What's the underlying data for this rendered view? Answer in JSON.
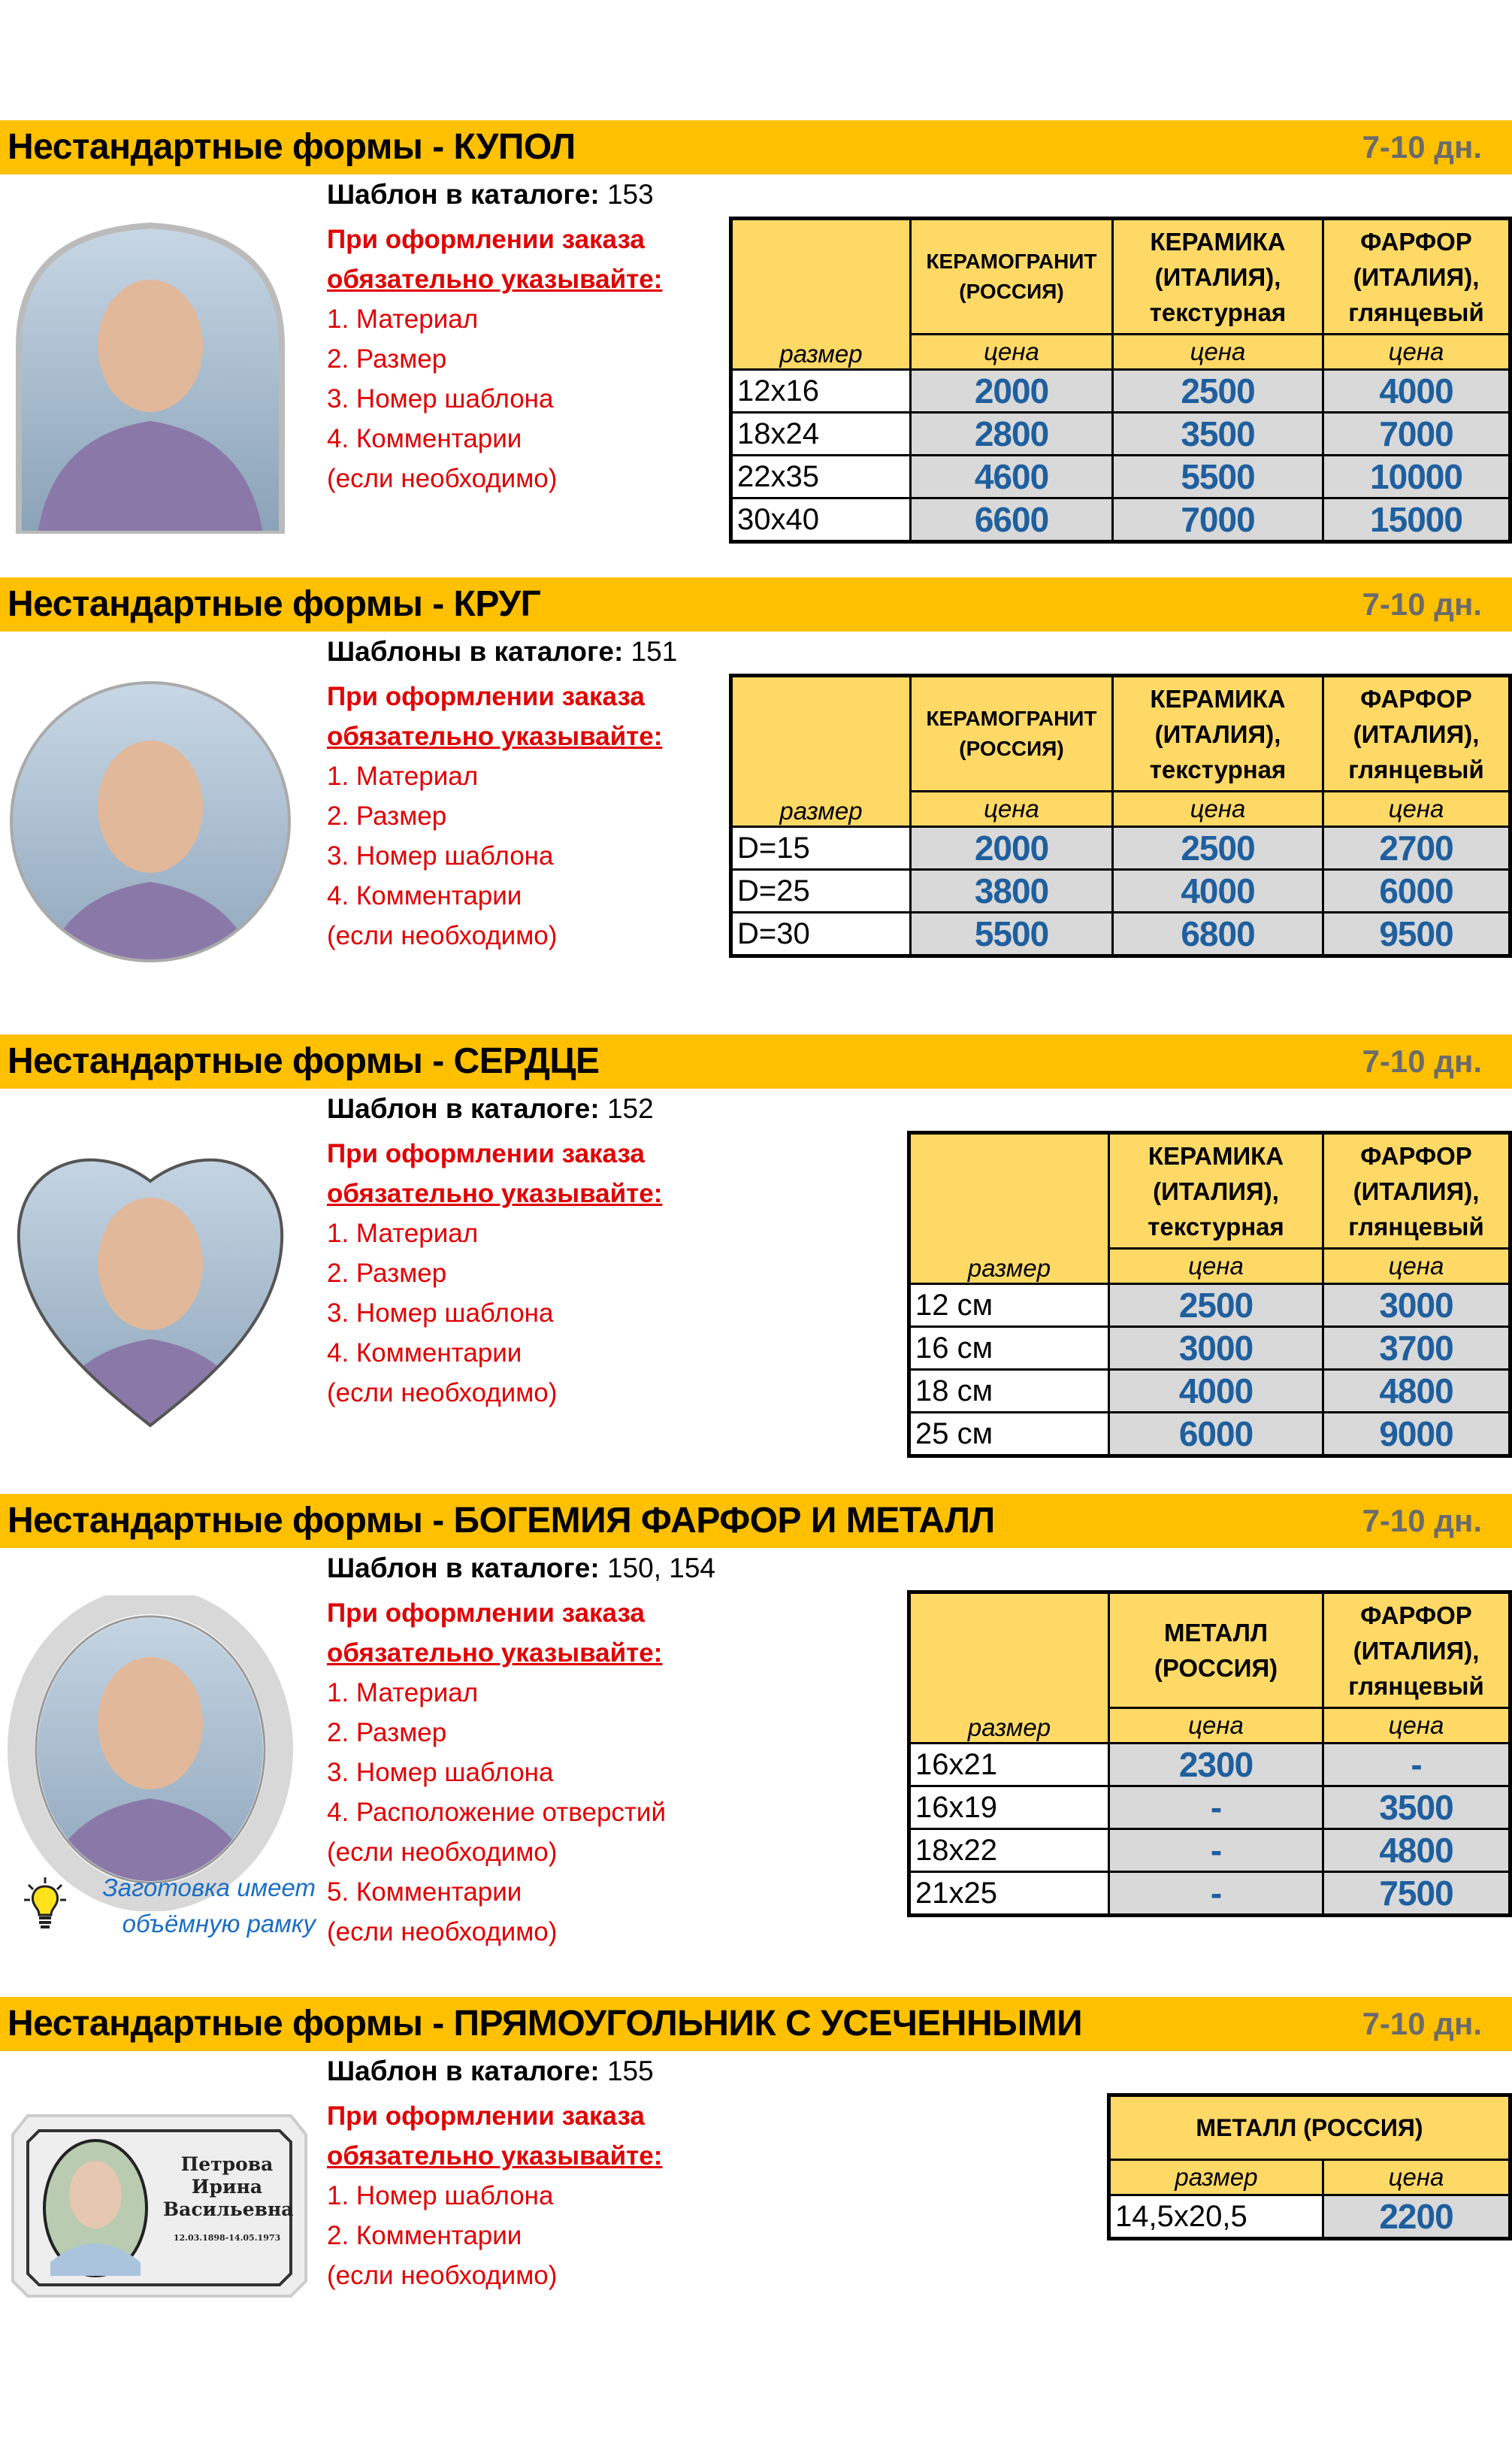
{
  "colors": {
    "bar": "#FFC000",
    "table_header": "#FFD966",
    "price_cell": "#D9D9D9",
    "price_text": "#1F5F9E",
    "required_text": "#E00000",
    "note_text": "#1A6EC6"
  },
  "common": {
    "size_label": "размер",
    "price_label": "цена",
    "days": "7-10 дн.",
    "order_heading": "При оформлении заказа",
    "order_heading2": "обязательно указывайте:"
  },
  "sections": [
    {
      "title": "Нестандартные формы - КУПОЛ",
      "catalog_label": "Шаблон в каталоге:",
      "catalog_value": " 153",
      "image": "dome-portrait",
      "requirements": [
        "1. Материал",
        "2. Размер",
        "3. Номер шаблона",
        "4. Комментарии",
        "(если необходимо)"
      ],
      "columns": [
        "КЕРАМОГРАНИТ\n(РОССИЯ)",
        "КЕРАМИКА\n(ИТАЛИЯ),\nтекстурная",
        "ФАРФОР\n(ИТАЛИЯ),\nглянцевый"
      ],
      "rows": [
        [
          "12x16",
          "2000",
          "2500",
          "4000"
        ],
        [
          "18x24",
          "2800",
          "3500",
          "7000"
        ],
        [
          "22x35",
          "4600",
          "5500",
          "10000"
        ],
        [
          "30x40",
          "6600",
          "7000",
          "15000"
        ]
      ]
    },
    {
      "title": "Нестандартные формы - КРУГ",
      "catalog_label": "Шаблоны в каталоге:",
      "catalog_value": " 151",
      "image": "circle-portrait",
      "requirements": [
        "1. Материал",
        "2. Размер",
        "3. Номер шаблона",
        "4. Комментарии",
        "(если необходимо)"
      ],
      "columns": [
        "КЕРАМОГРАНИТ\n(РОССИЯ)",
        "КЕРАМИКА\n(ИТАЛИЯ),\nтекстурная",
        "ФАРФОР\n(ИТАЛИЯ),\nглянцевый"
      ],
      "rows": [
        [
          "D=15",
          "2000",
          "2500",
          "2700"
        ],
        [
          "D=25",
          "3800",
          "4000",
          "6000"
        ],
        [
          "D=30",
          "5500",
          "6800",
          "9500"
        ]
      ]
    },
    {
      "title": "Нестандартные формы - СЕРДЦЕ",
      "catalog_label": "Шаблон в каталоге:",
      "catalog_value": " 152",
      "image": "heart-portrait",
      "requirements": [
        "1. Материал",
        "2. Размер",
        "3. Номер шаблона",
        "4. Комментарии",
        "(если необходимо)"
      ],
      "columns": [
        "КЕРАМИКА\n(ИТАЛИЯ),\nтекстурная",
        "ФАРФОР\n(ИТАЛИЯ),\nглянцевый"
      ],
      "rows": [
        [
          "12 см",
          "2500",
          "3000"
        ],
        [
          "16 см",
          "3000",
          "3700"
        ],
        [
          "18 см",
          "4000",
          "4800"
        ],
        [
          "25 см",
          "6000",
          "9000"
        ]
      ]
    },
    {
      "title": "Нестандартные формы - БОГЕМИЯ ФАРФОР И МЕТАЛЛ",
      "catalog_label": "Шаблон в каталоге:",
      "catalog_value": " 150, 154",
      "image": "oval-frame-portrait",
      "requirements": [
        "1. Материал",
        "2. Размер",
        "3. Номер шаблона",
        "4. Расположение отверстий",
        "(если необходимо)",
        "5. Комментарии",
        "(если необходимо)"
      ],
      "note": [
        "Заготовка имеет",
        "объёмную рамку"
      ],
      "note_icon": "lightbulb-icon",
      "columns": [
        "МЕТАЛЛ\n(РОССИЯ)",
        "ФАРФОР\n(ИТАЛИЯ),\nглянцевый"
      ],
      "rows": [
        [
          "16x21",
          "2300",
          "-"
        ],
        [
          "16x19",
          "-",
          "3500"
        ],
        [
          "18x22",
          "-",
          "4800"
        ],
        [
          "21x25",
          "-",
          "7500"
        ]
      ]
    },
    {
      "title": "Нестандартные формы - ПРЯМОУГОЛЬНИК С УСЕЧЕННЫМИ",
      "catalog_label": "Шаблон в каталоге:",
      "catalog_value": " 155",
      "image": "truncated-rectangle-plaque",
      "plaque_text": [
        "Петрова",
        "Ирина",
        "Васильевна",
        "12.03.1898-14.05.1973"
      ],
      "requirements": [
        "1. Номер шаблона",
        "2. Комментарии",
        "(если необходимо)"
      ],
      "columns": [
        "МЕТАЛЛ (РОССИЯ)"
      ],
      "rows": [
        [
          "14,5x20,5",
          "2200"
        ]
      ]
    }
  ]
}
